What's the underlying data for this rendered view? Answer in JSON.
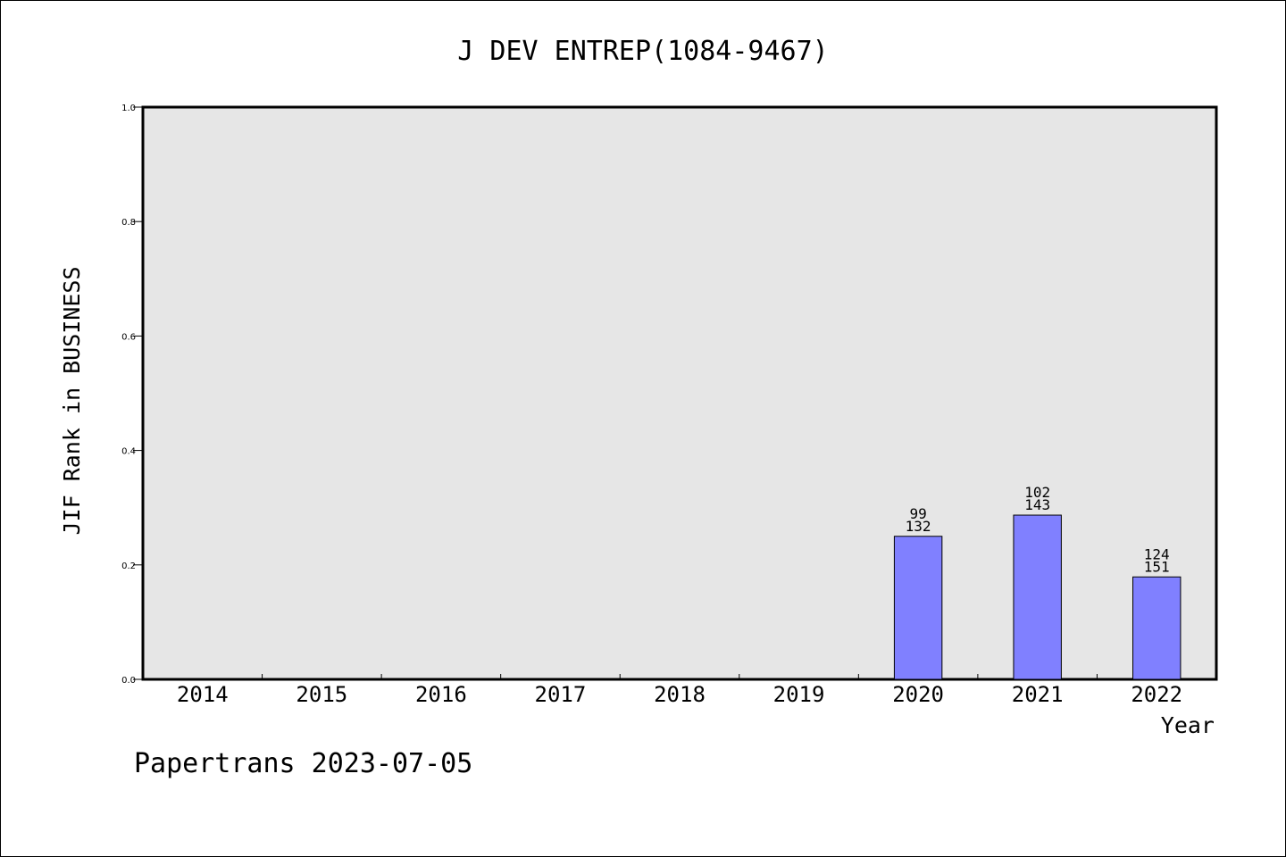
{
  "chart_data": {
    "type": "bar",
    "title": "J DEV ENTREP(1084-9467)",
    "xlabel": "Year",
    "ylabel": "JIF Rank in BUSINESS",
    "ylim": [
      0,
      1.0
    ],
    "yticks": [
      "0.0",
      "0.2",
      "0.4",
      "0.6",
      "0.8",
      "1.0"
    ],
    "grid": false,
    "categories": [
      "2014",
      "2015",
      "2016",
      "2017",
      "2018",
      "2019",
      "2020",
      "2021",
      "2022"
    ],
    "values": [
      null,
      null,
      null,
      null,
      null,
      null,
      0.25,
      0.287,
      0.179
    ],
    "data_labels": [
      null,
      null,
      null,
      null,
      null,
      null,
      [
        "99",
        "132"
      ],
      [
        "102",
        "143"
      ],
      [
        "124",
        "151"
      ]
    ],
    "colors": {
      "bar": "#8080ff",
      "plot_background": "#e6e6e6",
      "axes": "#000000"
    }
  },
  "footer": {
    "text": "Papertrans 2023-07-05"
  }
}
